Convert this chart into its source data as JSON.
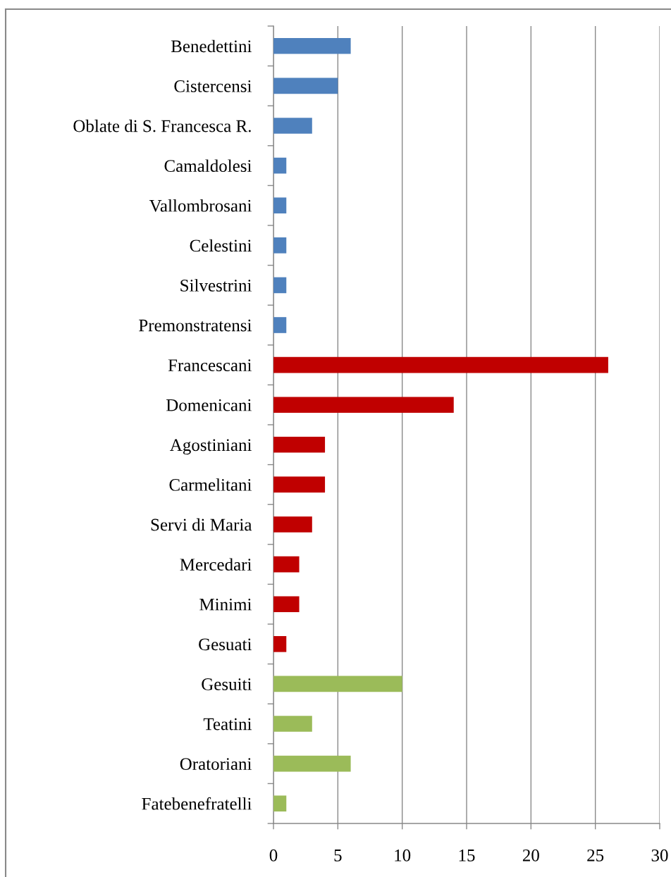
{
  "chart_data": {
    "type": "bar",
    "orientation": "horizontal",
    "categories": [
      "Benedettini",
      "Cistercensi",
      "Oblate di S. Francesca R.",
      "Camaldolesi",
      "Vallombrosani",
      "Celestini",
      "Silvestrini",
      "Premonstratensi",
      "Francescani",
      "Domenicani",
      "Agostiniani",
      "Carmelitani",
      "Servi di Maria",
      "Mercedari",
      "Minimi",
      "Gesuati",
      "Gesuiti",
      "Teatini",
      "Oratoriani",
      "Fatebenefratelli"
    ],
    "values": [
      6,
      5,
      3,
      1,
      1,
      1,
      1,
      1,
      26,
      14,
      4,
      4,
      3,
      2,
      2,
      1,
      10,
      3,
      6,
      1
    ],
    "colors": [
      "#4f81bd",
      "#4f81bd",
      "#4f81bd",
      "#4f81bd",
      "#4f81bd",
      "#4f81bd",
      "#4f81bd",
      "#4f81bd",
      "#c00000",
      "#c00000",
      "#c00000",
      "#c00000",
      "#c00000",
      "#c00000",
      "#c00000",
      "#c00000",
      "#9bbb59",
      "#9bbb59",
      "#9bbb59",
      "#9bbb59"
    ],
    "xlim": [
      0,
      30
    ],
    "xticks": [
      0,
      5,
      10,
      15,
      20,
      25,
      30
    ],
    "grid": "x"
  }
}
